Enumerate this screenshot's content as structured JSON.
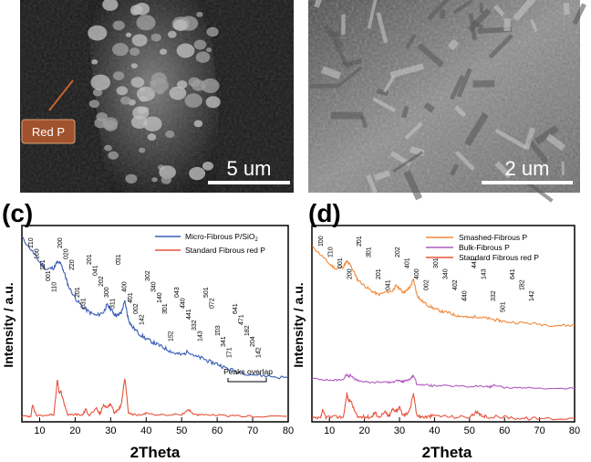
{
  "figure": {
    "panel_a": {
      "label_text": "Red P",
      "scale_bar": "5 um"
    },
    "panel_b": {
      "scale_bar": "2 um"
    },
    "panel_c": {
      "letter": "(c)",
      "legend": [
        "Micro-Fibrous P/SiO",
        "Standard Fibrous red P"
      ],
      "legend_subscript": "2",
      "annotation": "Peaks overlap"
    },
    "panel_d": {
      "letter": "(d)",
      "legend": [
        "Smashed-Fibrous P",
        "Bulk-Fibrous P",
        "Standard Fibrous red P"
      ]
    },
    "colors": {
      "blue": "#3a5db5",
      "red": "#e8533c",
      "orange": "#f08a3c",
      "purple": "#b05bc0",
      "sem_dark": "#1c1c1c",
      "sem_light": "#8a8a8a",
      "label_bg": "#a0522d"
    }
  },
  "chart_data": [
    {
      "type": "line",
      "panel": "(c)",
      "xlabel": "2Theta",
      "ylabel": "Intensity / a.u.",
      "xlim": [
        5,
        80
      ],
      "x_ticks": [
        10,
        20,
        30,
        40,
        50,
        60,
        70,
        80
      ],
      "series": [
        {
          "name": "Micro-Fibrous P/SiO2",
          "color": "#3a5db5",
          "x": [
            5,
            8,
            10,
            12,
            14,
            15,
            16,
            17,
            18,
            20,
            22,
            24,
            26,
            28,
            29,
            30,
            31,
            32,
            33,
            34,
            35,
            36,
            38,
            40,
            42,
            44,
            46,
            48,
            50,
            52,
            54,
            56,
            58,
            60,
            62,
            65,
            70,
            75,
            80
          ],
          "y": [
            100,
            92,
            86,
            82,
            83,
            86,
            85,
            80,
            73,
            66,
            61,
            58,
            56,
            58,
            62,
            60,
            57,
            56,
            58,
            64,
            54,
            50,
            46,
            43,
            41,
            39,
            37,
            35,
            34,
            36,
            33,
            32,
            30,
            29,
            27,
            25,
            23,
            22,
            21
          ]
        },
        {
          "name": "Standard Fibrous red P",
          "color": "#e8533c",
          "x": [
            5,
            7.5,
            8,
            9,
            12,
            14,
            15,
            15.5,
            16,
            17,
            18,
            20,
            22,
            23,
            24,
            26,
            27,
            28,
            29,
            30,
            31,
            32,
            33,
            34,
            35,
            36,
            38,
            40,
            45,
            50,
            52,
            53,
            55,
            60,
            65,
            70,
            80
          ],
          "y": [
            2,
            2,
            14,
            3,
            3,
            4,
            40,
            26,
            28,
            14,
            3,
            4,
            3,
            9,
            3,
            10,
            4,
            14,
            11,
            15,
            6,
            8,
            14,
            42,
            6,
            4,
            3,
            5,
            3,
            4,
            9,
            5,
            3,
            3,
            2,
            2,
            2
          ]
        }
      ],
      "peak_labels": [
        "1̄10",
        "100",
        "1̄01",
        "001",
        "110",
        "200",
        "020",
        "2̄20",
        "2̄01",
        "031",
        "201",
        "041",
        "202",
        "300",
        "311",
        "0̄31",
        "400",
        "4̄01",
        "002",
        "142",
        "302",
        "3̄40",
        "140",
        "3̄01",
        "15̄2",
        "043",
        "4̄40",
        "441",
        "332",
        "143",
        "501",
        "0̄72",
        "1̄03",
        "341",
        "1̄71",
        "641",
        "4̄71",
        "182",
        "204",
        "14̄2"
      ]
    },
    {
      "type": "line",
      "panel": "(d)",
      "xlabel": "2Theta",
      "ylabel": "Intensity / a.u.",
      "xlim": [
        5,
        80
      ],
      "x_ticks": [
        10,
        20,
        30,
        40,
        50,
        60,
        70,
        80
      ],
      "series": [
        {
          "name": "Smashed-Fibrous P",
          "color": "#f08a3c",
          "x": [
            5,
            8,
            10,
            12,
            14,
            15,
            16,
            17,
            18,
            20,
            22,
            24,
            26,
            28,
            29,
            30,
            31,
            32,
            33,
            34,
            35,
            36,
            38,
            40,
            42,
            44,
            46,
            48,
            50,
            52,
            54,
            56,
            58,
            60,
            65,
            70,
            75,
            80
          ],
          "y": [
            96,
            88,
            82,
            78,
            80,
            84,
            81,
            76,
            70,
            65,
            61,
            58,
            60,
            61,
            65,
            63,
            60,
            61,
            64,
            70,
            58,
            54,
            50,
            47,
            45,
            44,
            42,
            41,
            40,
            41,
            40,
            39,
            38,
            37,
            36,
            35,
            34,
            34
          ]
        },
        {
          "name": "Bulk-Fibrous P",
          "color": "#b05bc0",
          "x": [
            5,
            8,
            10,
            12,
            14,
            15,
            15.5,
            16,
            17,
            18,
            20,
            22,
            26,
            28,
            29,
            30,
            31,
            32,
            33,
            34,
            35,
            38,
            40,
            45,
            50,
            52,
            55,
            56,
            57,
            60,
            65,
            70,
            80
          ],
          "y": [
            26,
            25,
            24,
            24,
            25,
            32,
            28,
            30,
            26,
            24,
            22,
            21,
            22,
            21,
            24,
            23,
            22,
            24,
            25,
            30,
            19,
            18,
            17,
            17,
            16,
            17,
            16,
            16,
            18,
            15,
            15,
            14,
            14
          ]
        },
        {
          "name": "Standard Fibrous red P",
          "color": "#e8533c",
          "x": [
            5,
            7.5,
            8,
            9,
            12,
            14,
            15,
            15.5,
            16,
            17,
            18,
            20,
            22,
            23,
            24,
            26,
            27,
            28,
            29,
            30,
            31,
            32,
            33,
            34,
            35,
            36,
            38,
            40,
            45,
            50,
            52,
            53,
            55,
            60,
            65,
            70,
            80
          ],
          "y": [
            1,
            1,
            6,
            2,
            2,
            2,
            17,
            12,
            13,
            7,
            2,
            2,
            2,
            5,
            2,
            5,
            2,
            7,
            6,
            8,
            3,
            4,
            7,
            17,
            3,
            2,
            2,
            3,
            2,
            2,
            5,
            3,
            2,
            2,
            1,
            1,
            1
          ]
        }
      ],
      "peak_labels": [
        "1̄00",
        "1̄10",
        "001",
        "200",
        "2̄01",
        "3̄01",
        "201",
        "041",
        "202",
        "401",
        "400",
        "002",
        "301",
        "340",
        "402",
        "4̄40",
        "441",
        "143",
        "332",
        "501",
        "641",
        "1̄82",
        "142"
      ]
    }
  ]
}
